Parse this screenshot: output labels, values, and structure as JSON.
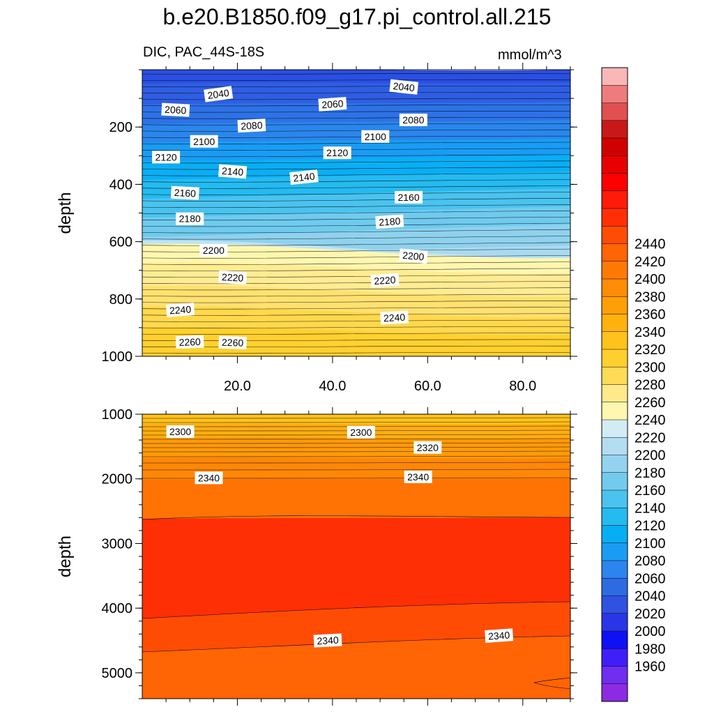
{
  "chart_data": {
    "type": "contour",
    "title": "b.e20.B1850.f09_g17.pi_control.all.215",
    "subtitle_left": "DIC, PAC_44S-18S",
    "units": "mmol/m^3",
    "xlabel": "",
    "ylabel": "depth",
    "x_ticks": [
      "20.0",
      "40.0",
      "60.0",
      "80.0"
    ],
    "xlim": [
      0,
      90
    ],
    "colorbar": {
      "levels": [
        1960,
        1980,
        2000,
        2020,
        2040,
        2060,
        2080,
        2100,
        2120,
        2140,
        2160,
        2180,
        2200,
        2220,
        2240,
        2260,
        2280,
        2300,
        2320,
        2340,
        2360,
        2380,
        2400,
        2420,
        2440
      ],
      "colors": [
        "#8c2be2",
        "#6f2ef0",
        "#3f1ff7",
        "#1010f4",
        "#2a36e6",
        "#2f52e0",
        "#2e6be3",
        "#2c84ee",
        "#1a9cf5",
        "#08aef4",
        "#25baf0",
        "#4ac3ef",
        "#72cbee",
        "#94d3ef",
        "#b3ddf1",
        "#d2ebf5",
        "#fff7b0",
        "#ffe98a",
        "#ffdb58",
        "#ffcf30",
        "#ffc21c",
        "#ffb20e",
        "#ff9f08",
        "#ff8c06",
        "#ff7a05",
        "#ff6405",
        "#ff4c05",
        "#ff2f05",
        "#ff1a0a",
        "#ff0000",
        "#e80000",
        "#d00000",
        "#c81818",
        "#e05050",
        "#ee7c7c",
        "#f8b8b8"
      ],
      "labels": [
        "1960",
        "1980",
        "2000",
        "2020",
        "2040",
        "2060",
        "2080",
        "2100",
        "2120",
        "2140",
        "2160",
        "2180",
        "2200",
        "2220",
        "2240",
        "2260",
        "2280",
        "2300",
        "2320",
        "2340",
        "2360",
        "2380",
        "2400",
        "2420",
        "2440"
      ]
    },
    "panels": [
      {
        "name": "upper",
        "ylim": [
          0,
          1000
        ],
        "y_ticks": [
          "200",
          "400",
          "600",
          "800",
          "1000"
        ],
        "contour_labels": [
          {
            "text": "2040",
            "x": 16,
            "y": 85,
            "rot": -8
          },
          {
            "text": "2040",
            "x": 55,
            "y": 60,
            "rot": 6
          },
          {
            "text": "2060",
            "x": 7,
            "y": 140,
            "rot": 3
          },
          {
            "text": "2060",
            "x": 40,
            "y": 120,
            "rot": -4
          },
          {
            "text": "2080",
            "x": 23,
            "y": 195,
            "rot": -3
          },
          {
            "text": "2080",
            "x": 57,
            "y": 175,
            "rot": 0
          },
          {
            "text": "2100",
            "x": 13,
            "y": 250,
            "rot": 0
          },
          {
            "text": "2100",
            "x": 49,
            "y": 233,
            "rot": 0
          },
          {
            "text": "2120",
            "x": 5,
            "y": 305,
            "rot": 0
          },
          {
            "text": "2120",
            "x": 41,
            "y": 290,
            "rot": 0
          },
          {
            "text": "2140",
            "x": 19,
            "y": 355,
            "rot": 4
          },
          {
            "text": "2140",
            "x": 34,
            "y": 375,
            "rot": -6
          },
          {
            "text": "2160",
            "x": 9,
            "y": 430,
            "rot": 3
          },
          {
            "text": "2160",
            "x": 56,
            "y": 445,
            "rot": 0
          },
          {
            "text": "2180",
            "x": 10,
            "y": 520,
            "rot": 0
          },
          {
            "text": "2180",
            "x": 52,
            "y": 530,
            "rot": -4
          },
          {
            "text": "2200",
            "x": 15,
            "y": 630,
            "rot": 0
          },
          {
            "text": "2200",
            "x": 57,
            "y": 650,
            "rot": 5
          },
          {
            "text": "2220",
            "x": 19,
            "y": 725,
            "rot": 3
          },
          {
            "text": "2220",
            "x": 51,
            "y": 735,
            "rot": -4
          },
          {
            "text": "2240",
            "x": 8,
            "y": 838,
            "rot": -4
          },
          {
            "text": "2240",
            "x": 53,
            "y": 865,
            "rot": -3
          },
          {
            "text": "2260",
            "x": 10,
            "y": 950,
            "rot": -2
          },
          {
            "text": "2260",
            "x": 19,
            "y": 952,
            "rot": 2
          }
        ]
      },
      {
        "name": "lower",
        "ylim": [
          1000,
          5400
        ],
        "y_ticks": [
          "1000",
          "2000",
          "3000",
          "4000",
          "5000"
        ],
        "contour_labels": [
          {
            "text": "2300",
            "x": 8,
            "y": 1270,
            "rot": 0
          },
          {
            "text": "2300",
            "x": 46,
            "y": 1280,
            "rot": 0
          },
          {
            "text": "2320",
            "x": 60,
            "y": 1515,
            "rot": 0
          },
          {
            "text": "2340",
            "x": 14,
            "y": 1985,
            "rot": 0
          },
          {
            "text": "2340",
            "x": 58,
            "y": 1970,
            "rot": 0
          },
          {
            "text": "2340",
            "x": 39,
            "y": 4500,
            "rot": -3
          },
          {
            "text": "2340",
            "x": 75,
            "y": 4425,
            "rot": -4
          }
        ]
      }
    ]
  }
}
